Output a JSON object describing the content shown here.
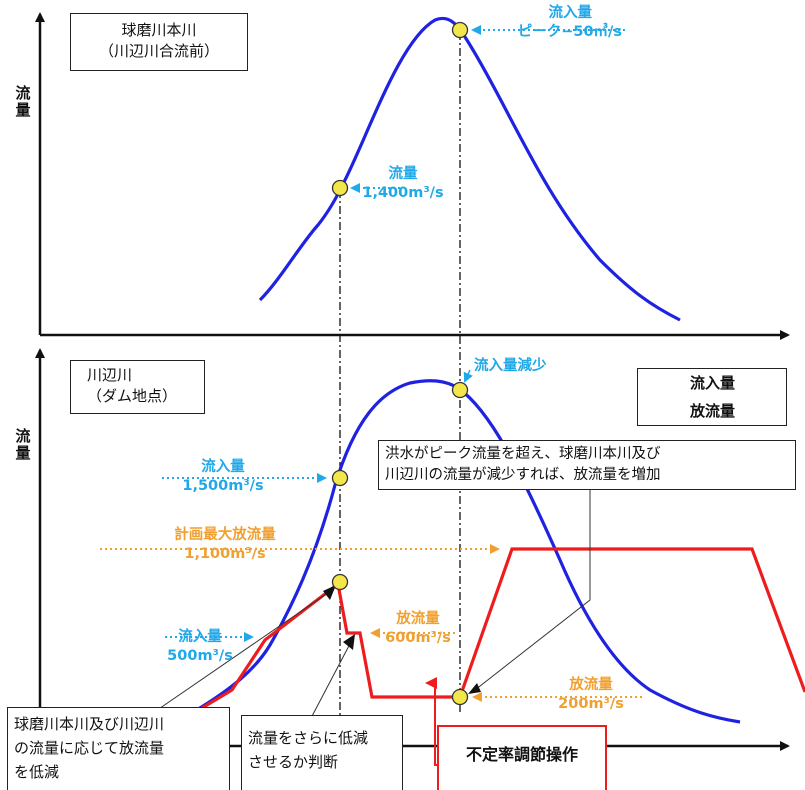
{
  "colors": {
    "inflow_line": "#1f22e0",
    "outflow_line": "#ee1c1c",
    "callout_blue": "#20a8e8",
    "callout_orange": "#f0a030",
    "marker_fill": "#f2e64a",
    "emphasis_border": "#ee1c1c"
  },
  "top_panel": {
    "title_line1": "球磨川本川",
    "title_line2": "（川辺川合流前）",
    "y_axis_label": "流\n量",
    "peak_label_line1": "流入量",
    "peak_label_line2": "ピーク−50㎥/s",
    "mid_label_line1": "流量",
    "mid_label_line2": "1,400m³/s"
  },
  "bottom_panel": {
    "title_line1": "川辺川",
    "title_line2": "（ダム地点）",
    "y_axis_label": "流\n量",
    "legend": [
      {
        "name": "流入量",
        "color_key": "inflow_line"
      },
      {
        "name": "放流量",
        "color_key": "outflow_line"
      }
    ],
    "inflow_decrease_label": "流入量減少",
    "inflow_1500_line1": "流入量",
    "inflow_1500_line2": "1,500m³/s",
    "planned_max_line1": "計画最大放流量",
    "planned_max_line2": "1,100m³/s",
    "inflow_500_line1": "流入量",
    "inflow_500_line2": "500m³/s",
    "outflow_600_line1": "放流量",
    "outflow_600_line2": "600m³/s",
    "outflow_200_line1": "放流量",
    "outflow_200_line2": "200m³/s",
    "callout_increase_line1": "洪水がピーク流量を超え、球磨川本川及び",
    "callout_increase_line2": "川辺川の流量が減少すれば、放流量を増加",
    "callout_reduce_line1": "球磨川本川及び川辺川",
    "callout_reduce_line2": "の流量に応じて放流量",
    "callout_reduce_line3": "を低減",
    "callout_judge_line1": "流量をさらに低減",
    "callout_judge_line2": "させるか判断",
    "operation_label": "不定率調節操作"
  }
}
